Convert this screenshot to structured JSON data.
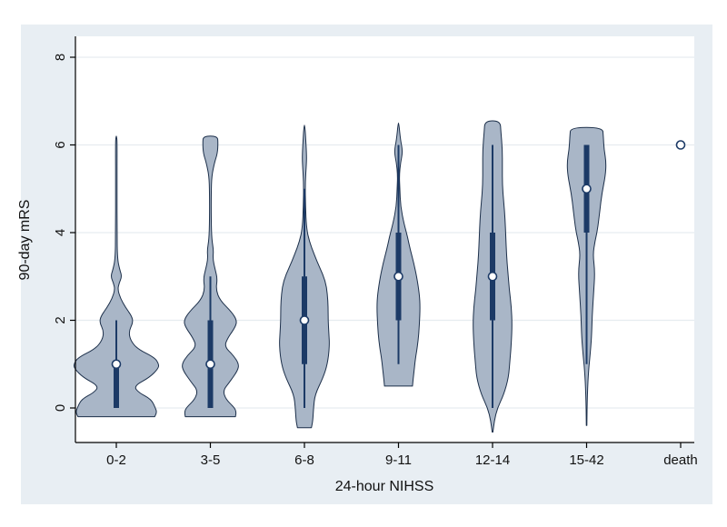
{
  "chart_data": {
    "type": "violin",
    "xlabel": "24-hour NIHSS",
    "ylabel": "90-day mRS",
    "ylim": [
      -0.8,
      8.2
    ],
    "yticks": [
      0,
      2,
      4,
      6,
      8
    ],
    "grid": true,
    "colors": {
      "outer_background": "#e8eef3",
      "plot_background": "#ffffff",
      "gridline": "#e6ecf0",
      "violin_fill": "#a9b6c7",
      "violin_stroke": "#1c2f4a",
      "box": "#1c3a66",
      "median_fill": "#ffffff"
    },
    "categories": [
      "0-2",
      "3-5",
      "6-8",
      "9-11",
      "12-14",
      "15-42",
      "death"
    ],
    "groups": [
      {
        "category": "0-2",
        "median": 1,
        "q1": 0,
        "q3": 1,
        "whisker_low": 0,
        "whisker_high": 2,
        "density": [
          [
            -0.2,
            0.55
          ],
          [
            -0.1,
            0.58
          ],
          [
            0,
            0.56
          ],
          [
            0.2,
            0.5
          ],
          [
            0.35,
            0.32
          ],
          [
            0.5,
            0.25
          ],
          [
            0.7,
            0.48
          ],
          [
            0.9,
            0.6
          ],
          [
            1,
            0.61
          ],
          [
            1.15,
            0.55
          ],
          [
            1.35,
            0.3
          ],
          [
            1.55,
            0.2
          ],
          [
            1.75,
            0.18
          ],
          [
            1.95,
            0.24
          ],
          [
            2.1,
            0.22
          ],
          [
            2.3,
            0.13
          ],
          [
            2.5,
            0.06
          ],
          [
            2.7,
            0.02
          ],
          [
            2.85,
            0.04
          ],
          [
            3.0,
            0.08
          ],
          [
            3.15,
            0.05
          ],
          [
            3.4,
            0.015
          ],
          [
            4.0,
            0.012
          ],
          [
            5.0,
            0.01
          ],
          [
            6.0,
            0.012
          ],
          [
            6.2,
            0.005
          ]
        ]
      },
      {
        "category": "3-5",
        "median": 1,
        "q1": 0,
        "q3": 2,
        "whisker_low": 0,
        "whisker_high": 3,
        "density": [
          [
            -0.2,
            0.36
          ],
          [
            -0.1,
            0.37
          ],
          [
            0,
            0.35
          ],
          [
            0.2,
            0.22
          ],
          [
            0.4,
            0.18
          ],
          [
            0.6,
            0.28
          ],
          [
            0.85,
            0.39
          ],
          [
            1,
            0.41
          ],
          [
            1.2,
            0.33
          ],
          [
            1.4,
            0.2
          ],
          [
            1.6,
            0.25
          ],
          [
            1.85,
            0.36
          ],
          [
            2,
            0.38
          ],
          [
            2.2,
            0.3
          ],
          [
            2.45,
            0.14
          ],
          [
            2.7,
            0.08
          ],
          [
            2.95,
            0.1
          ],
          [
            3.15,
            0.07
          ],
          [
            3.4,
            0.035
          ],
          [
            3.6,
            0.045
          ],
          [
            3.85,
            0.02
          ],
          [
            4.3,
            0.012
          ],
          [
            4.9,
            0.012
          ],
          [
            5.3,
            0.02
          ],
          [
            5.6,
            0.06
          ],
          [
            5.8,
            0.1
          ],
          [
            6.05,
            0.11
          ],
          [
            6.2,
            0.1
          ]
        ]
      },
      {
        "category": "6-8",
        "median": 2,
        "q1": 1,
        "q3": 3,
        "whisker_low": 0,
        "whisker_high": 5,
        "density": [
          [
            -0.45,
            0.1
          ],
          [
            -0.3,
            0.12
          ],
          [
            0,
            0.13
          ],
          [
            0.3,
            0.15
          ],
          [
            0.7,
            0.27
          ],
          [
            1,
            0.33
          ],
          [
            1.4,
            0.36
          ],
          [
            1.7,
            0.35
          ],
          [
            2,
            0.34
          ],
          [
            2.3,
            0.34
          ],
          [
            2.6,
            0.33
          ],
          [
            2.9,
            0.3
          ],
          [
            3.2,
            0.22
          ],
          [
            3.5,
            0.14
          ],
          [
            3.8,
            0.07
          ],
          [
            4.1,
            0.03
          ],
          [
            4.6,
            0.015
          ],
          [
            5.1,
            0.01
          ],
          [
            5.6,
            0.03
          ],
          [
            5.8,
            0.03
          ],
          [
            6.1,
            0.02
          ],
          [
            6.45,
            0.005
          ]
        ]
      },
      {
        "category": "9-11",
        "median": 3,
        "q1": 2,
        "q3": 4,
        "whisker_low": 1,
        "whisker_high": 6,
        "density": [
          [
            0.5,
            0.2
          ],
          [
            0.8,
            0.22
          ],
          [
            1.1,
            0.24
          ],
          [
            1.5,
            0.28
          ],
          [
            1.9,
            0.3
          ],
          [
            2.3,
            0.31
          ],
          [
            2.6,
            0.3
          ],
          [
            3,
            0.26
          ],
          [
            3.3,
            0.22
          ],
          [
            3.6,
            0.17
          ],
          [
            3.9,
            0.13
          ],
          [
            4.2,
            0.08
          ],
          [
            4.6,
            0.03
          ],
          [
            5.0,
            0.02
          ],
          [
            5.3,
            0.012
          ],
          [
            5.6,
            0.03
          ],
          [
            5.85,
            0.06
          ],
          [
            6.1,
            0.03
          ],
          [
            6.5,
            0.005
          ]
        ]
      },
      {
        "category": "12-14",
        "median": 3,
        "q1": 2,
        "q3": 4,
        "whisker_low": 0,
        "whisker_high": 6,
        "density": [
          [
            -0.55,
            0.005
          ],
          [
            -0.3,
            0.025
          ],
          [
            0,
            0.07
          ],
          [
            0.3,
            0.16
          ],
          [
            0.7,
            0.23
          ],
          [
            1.1,
            0.25
          ],
          [
            1.5,
            0.27
          ],
          [
            1.9,
            0.28
          ],
          [
            2.3,
            0.27
          ],
          [
            2.7,
            0.24
          ],
          [
            3.1,
            0.22
          ],
          [
            3.5,
            0.2
          ],
          [
            3.9,
            0.19
          ],
          [
            4.3,
            0.18
          ],
          [
            4.7,
            0.16
          ],
          [
            5.1,
            0.14
          ],
          [
            5.5,
            0.14
          ],
          [
            5.9,
            0.14
          ],
          [
            6.3,
            0.12
          ],
          [
            6.55,
            0.11
          ]
        ]
      },
      {
        "category": "15-42",
        "median": 5,
        "q1": 4,
        "q3": 6,
        "whisker_low": 1,
        "whisker_high": 6,
        "density": [
          [
            -0.4,
            0.004
          ],
          [
            0.3,
            0.01
          ],
          [
            0.9,
            0.03
          ],
          [
            1.2,
            0.05
          ],
          [
            1.6,
            0.07
          ],
          [
            2.1,
            0.08
          ],
          [
            2.6,
            0.1
          ],
          [
            3.1,
            0.12
          ],
          [
            3.5,
            0.09
          ],
          [
            3.8,
            0.12
          ],
          [
            4.1,
            0.16
          ],
          [
            4.5,
            0.19
          ],
          [
            4.9,
            0.22
          ],
          [
            5.3,
            0.27
          ],
          [
            5.6,
            0.28
          ],
          [
            5.9,
            0.25
          ],
          [
            6.2,
            0.24
          ],
          [
            6.4,
            0.23
          ]
        ]
      },
      {
        "category": "death",
        "median": 6,
        "point_only": true
      }
    ]
  }
}
